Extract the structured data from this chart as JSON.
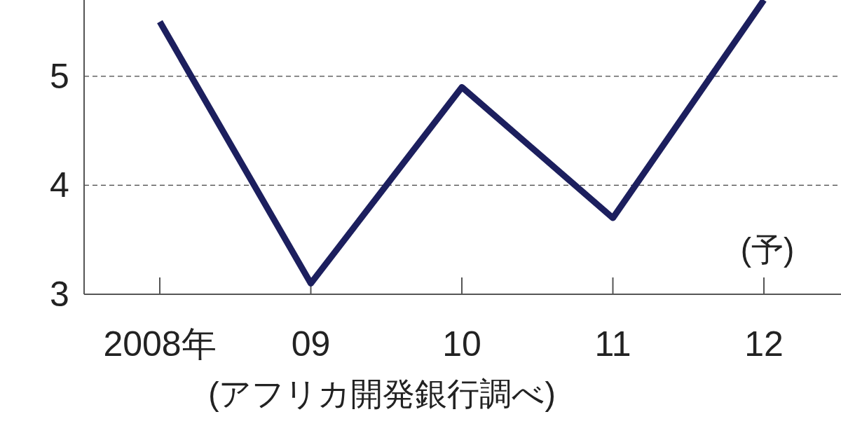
{
  "chart_data": {
    "type": "line",
    "categories": [
      "2008年",
      "09",
      "10",
      "11",
      "12"
    ],
    "series": [
      {
        "color": "#1c1f5e",
        "values": [
          5.5,
          3.1,
          4.9,
          3.7,
          5.7
        ]
      }
    ],
    "ylim": [
      3,
      5.7
    ],
    "yticks": [
      3,
      4,
      5
    ],
    "grid": "y",
    "marker": "none",
    "annotations": [
      "(予)",
      "(アフリカ開発銀行調べ)"
    ]
  }
}
